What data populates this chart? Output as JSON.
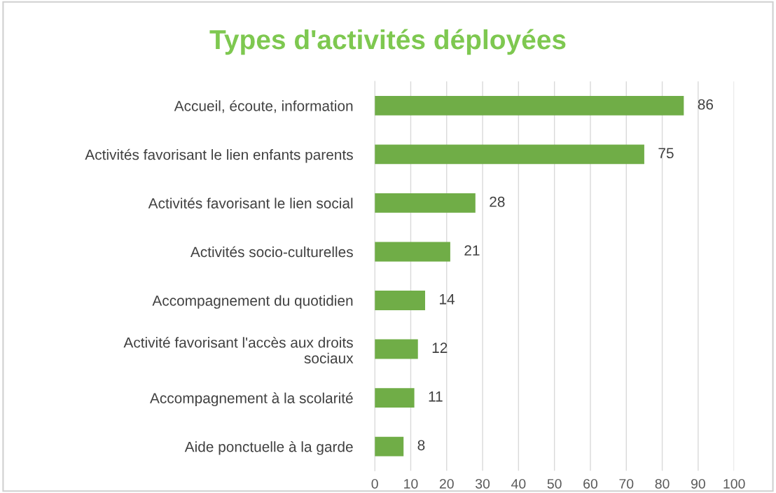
{
  "chart_data": {
    "type": "bar",
    "orientation": "horizontal",
    "title": "Types d'activités déployées",
    "categories": [
      "Accueil, écoute, information",
      "Activités favorisant le lien enfants parents",
      "Activités favorisant le lien social",
      "Activités socio-culturelles",
      "Accompagnement du quotidien",
      "Activité favorisant l'accès aux droits sociaux",
      "Accompagnement à la scolarité",
      "Aide ponctuelle à la garde"
    ],
    "values": [
      86,
      75,
      28,
      21,
      14,
      12,
      11,
      8
    ],
    "color": "#70ad47",
    "xlim": [
      0,
      100
    ],
    "xticks": [
      0,
      10,
      20,
      30,
      40,
      50,
      60,
      70,
      80,
      90,
      100
    ],
    "grid": "x",
    "data_labels": true,
    "legend": false
  }
}
